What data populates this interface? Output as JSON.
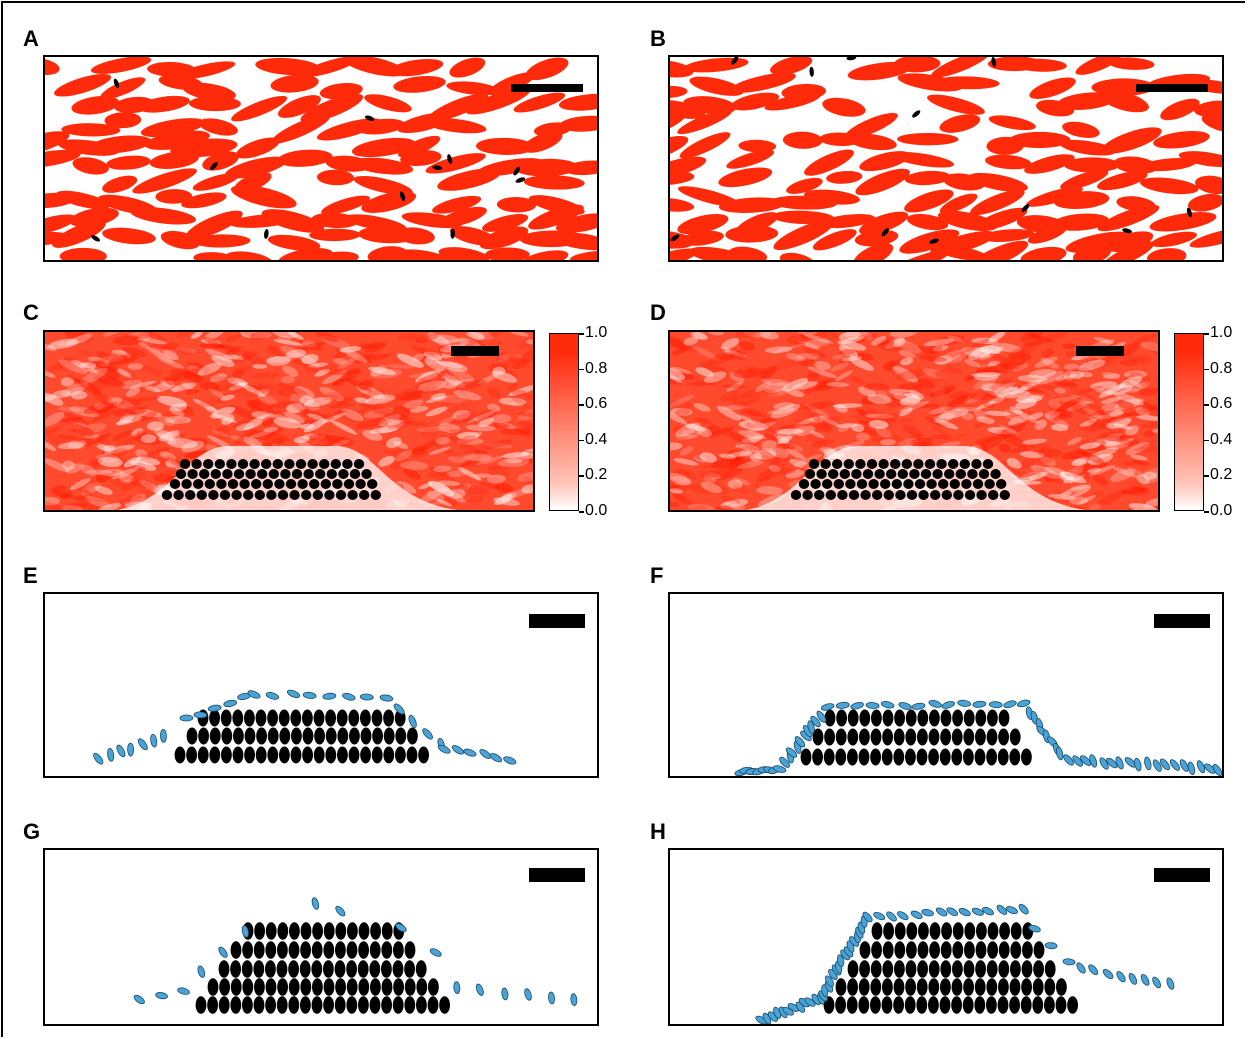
{
  "panel_labels": {
    "A": "A",
    "B": "B",
    "C": "C",
    "D": "D",
    "E": "E",
    "F": "F",
    "G": "G",
    "H": "H"
  },
  "colorbar": {
    "ticks": [
      "1.0",
      "0.8",
      "0.6",
      "0.4",
      "0.2",
      "0.0"
    ],
    "max_color": "#ff2a0a",
    "min_color": "#ffffff"
  },
  "colors": {
    "cells": "#ff2a0a",
    "fixed_particles": "#000000",
    "mobile_particles": "#4aa3d6",
    "background": "#ffffff"
  }
}
